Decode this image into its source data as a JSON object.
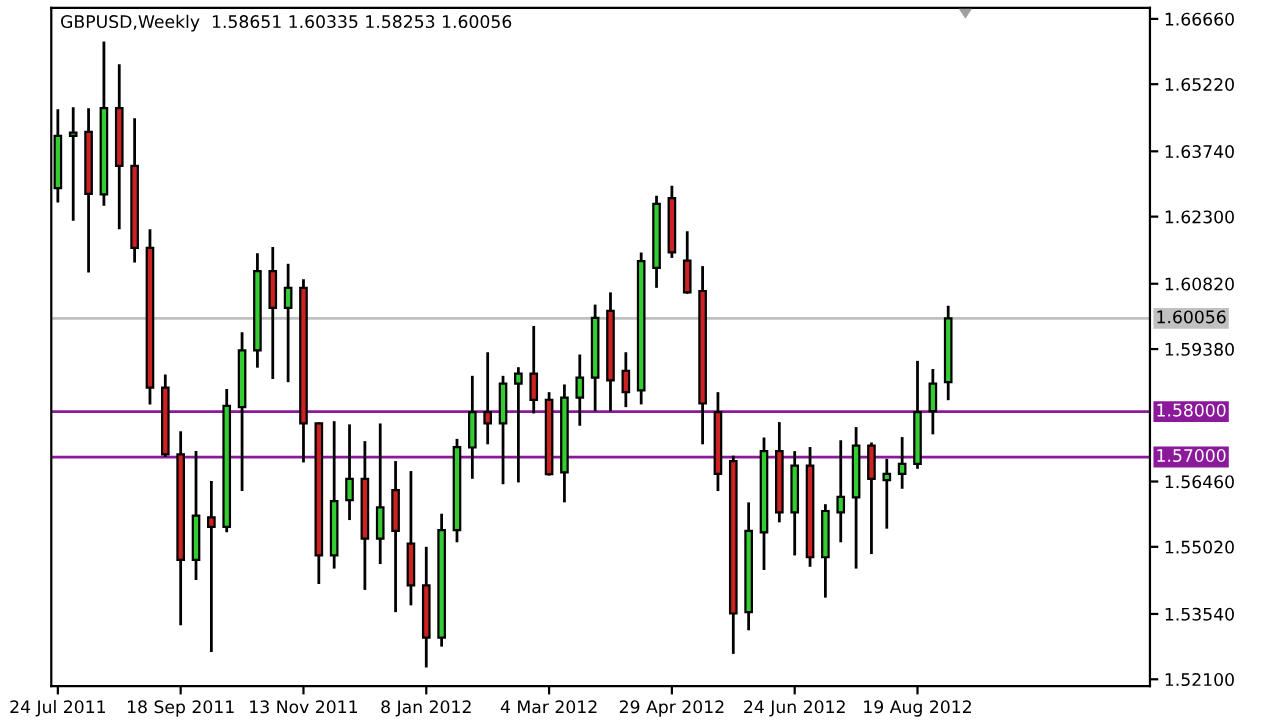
{
  "chart_data": {
    "type": "candlestick",
    "title": "GBPUSD,Weekly  1.58651 1.60335 1.58253 1.60056",
    "x": [
      "2011-07-24",
      "2011-07-31",
      "2011-08-07",
      "2011-08-14",
      "2011-08-21",
      "2011-08-28",
      "2011-09-04",
      "2011-09-11",
      "2011-09-18",
      "2011-09-25",
      "2011-10-02",
      "2011-10-09",
      "2011-10-16",
      "2011-10-23",
      "2011-10-30",
      "2011-11-06",
      "2011-11-13",
      "2011-11-20",
      "2011-11-27",
      "2011-12-04",
      "2011-12-11",
      "2011-12-18",
      "2011-12-25",
      "2012-01-01",
      "2012-01-08",
      "2012-01-15",
      "2012-01-22",
      "2012-01-29",
      "2012-02-05",
      "2012-02-12",
      "2012-02-19",
      "2012-02-26",
      "2012-03-04",
      "2012-03-11",
      "2012-03-18",
      "2012-03-25",
      "2012-04-01",
      "2012-04-08",
      "2012-04-15",
      "2012-04-22",
      "2012-04-29",
      "2012-05-06",
      "2012-05-13",
      "2012-05-20",
      "2012-05-27",
      "2012-06-03",
      "2012-06-10",
      "2012-06-17",
      "2012-06-24",
      "2012-07-01",
      "2012-07-08",
      "2012-07-15",
      "2012-07-22",
      "2012-07-29",
      "2012-08-05",
      "2012-08-12",
      "2012-08-19",
      "2012-08-26",
      "2012-09-02"
    ],
    "ohlc": [
      [
        1.6293,
        1.6467,
        1.6261,
        1.6408
      ],
      [
        1.6408,
        1.6471,
        1.6221,
        1.6415
      ],
      [
        1.6417,
        1.6469,
        1.6107,
        1.628
      ],
      [
        1.6279,
        1.6616,
        1.6254,
        1.6469
      ],
      [
        1.6469,
        1.6566,
        1.6202,
        1.6342
      ],
      [
        1.6342,
        1.6447,
        1.6129,
        1.6161
      ],
      [
        1.6161,
        1.6202,
        1.5816,
        1.5853
      ],
      [
        1.5853,
        1.5882,
        1.57,
        1.5706
      ],
      [
        1.5706,
        1.5757,
        1.5329,
        1.5473
      ],
      [
        1.5473,
        1.5713,
        1.5429,
        1.5571
      ],
      [
        1.5567,
        1.5647,
        1.527,
        1.5546
      ],
      [
        1.5546,
        1.585,
        1.5534,
        1.5813
      ],
      [
        1.581,
        1.5975,
        1.5625,
        1.5935
      ],
      [
        1.5935,
        1.6149,
        1.5897,
        1.611
      ],
      [
        1.611,
        1.6163,
        1.5872,
        1.6029
      ],
      [
        1.6029,
        1.6126,
        1.5865,
        1.6073
      ],
      [
        1.6073,
        1.6092,
        1.5688,
        1.5774
      ],
      [
        1.5774,
        1.5776,
        1.542,
        1.5483
      ],
      [
        1.5483,
        1.5779,
        1.5454,
        1.5603
      ],
      [
        1.5605,
        1.5772,
        1.5561,
        1.5652
      ],
      [
        1.5652,
        1.5735,
        1.5407,
        1.552
      ],
      [
        1.552,
        1.5774,
        1.5464,
        1.5589
      ],
      [
        1.5627,
        1.5691,
        1.5358,
        1.5537
      ],
      [
        1.5509,
        1.5669,
        1.5373,
        1.5417
      ],
      [
        1.5417,
        1.5502,
        1.5236,
        1.5302
      ],
      [
        1.5302,
        1.5575,
        1.5282,
        1.5539
      ],
      [
        1.5539,
        1.574,
        1.5512,
        1.5722
      ],
      [
        1.5721,
        1.5879,
        1.5652,
        1.5799
      ],
      [
        1.5799,
        1.5931,
        1.5728,
        1.5774
      ],
      [
        1.5774,
        1.5879,
        1.564,
        1.5862
      ],
      [
        1.5862,
        1.5898,
        1.5644,
        1.5884
      ],
      [
        1.5884,
        1.5989,
        1.5796,
        1.5826
      ],
      [
        1.5826,
        1.5843,
        1.5659,
        1.5662
      ],
      [
        1.5666,
        1.586,
        1.56,
        1.5831
      ],
      [
        1.5831,
        1.5926,
        1.5769,
        1.5875
      ],
      [
        1.5875,
        1.6036,
        1.5801,
        1.6007
      ],
      [
        1.6022,
        1.6063,
        1.5801,
        1.5869
      ],
      [
        1.589,
        1.5931,
        1.581,
        1.5843
      ],
      [
        1.5847,
        1.6151,
        1.5816,
        1.6132
      ],
      [
        1.6117,
        1.6276,
        1.6073,
        1.6258
      ],
      [
        1.6271,
        1.6298,
        1.6139,
        1.6151
      ],
      [
        1.6133,
        1.6198,
        1.606,
        1.6063
      ],
      [
        1.6066,
        1.6121,
        1.5728,
        1.5818
      ],
      [
        1.5799,
        1.5843,
        1.5625,
        1.5663
      ],
      [
        1.5691,
        1.5703,
        1.5266,
        1.5355
      ],
      [
        1.5358,
        1.56,
        1.5318,
        1.5537
      ],
      [
        1.5534,
        1.5743,
        1.5451,
        1.5713
      ],
      [
        1.5713,
        1.5777,
        1.5556,
        1.5578
      ],
      [
        1.5578,
        1.5713,
        1.5483,
        1.5681
      ],
      [
        1.5681,
        1.5722,
        1.5458,
        1.5479
      ],
      [
        1.5479,
        1.5596,
        1.539,
        1.5581
      ],
      [
        1.5578,
        1.5737,
        1.5512,
        1.5612
      ],
      [
        1.5611,
        1.5766,
        1.5454,
        1.5725
      ],
      [
        1.5725,
        1.5732,
        1.5486,
        1.5652
      ],
      [
        1.5649,
        1.5696,
        1.5542,
        1.5663
      ],
      [
        1.5663,
        1.5744,
        1.563,
        1.5685
      ],
      [
        1.5685,
        1.5912,
        1.5674,
        1.5799
      ],
      [
        1.5801,
        1.5894,
        1.575,
        1.5862
      ],
      [
        1.58651,
        1.60335,
        1.58253,
        1.60056
      ]
    ],
    "colors": [
      "#33cc33",
      "#33cc33",
      "#cc2222",
      "#33cc33",
      "#cc2222",
      "#cc2222",
      "#cc2222",
      "#cc2222",
      "#cc2222",
      "#33cc33",
      "#cc2222",
      "#33cc33",
      "#33cc33",
      "#33cc33",
      "#cc2222",
      "#33cc33",
      "#cc2222",
      "#cc2222",
      "#33cc33",
      "#33cc33",
      "#cc2222",
      "#33cc33",
      "#cc2222",
      "#cc2222",
      "#cc2222",
      "#33cc33",
      "#33cc33",
      "#33cc33",
      "#cc2222",
      "#33cc33",
      "#33cc33",
      "#cc2222",
      "#cc2222",
      "#33cc33",
      "#33cc33",
      "#33cc33",
      "#cc2222",
      "#cc2222",
      "#33cc33",
      "#33cc33",
      "#cc2222",
      "#cc2222",
      "#cc2222",
      "#cc2222",
      "#cc2222",
      "#33cc33",
      "#33cc33",
      "#cc2222",
      "#33cc33",
      "#cc2222",
      "#33cc33",
      "#33cc33",
      "#33cc33",
      "#cc2222",
      "#33cc33",
      "#33cc33",
      "#33cc33",
      "#33cc33",
      "#33cc33"
    ],
    "xlim": [
      "2011-07-21",
      "2012-12-03"
    ],
    "xticks": [
      {
        "value": "2011-07-24",
        "label": "24 Jul 2011"
      },
      {
        "value": "2011-09-18",
        "label": "18 Sep 2011"
      },
      {
        "value": "2011-11-13",
        "label": "13 Nov 2011"
      },
      {
        "value": "2012-01-08",
        "label": "8 Jan 2012"
      },
      {
        "value": "2012-03-04",
        "label": "4 Mar 2012"
      },
      {
        "value": "2012-04-29",
        "label": "29 Apr 2012"
      },
      {
        "value": "2012-06-24",
        "label": "24 Jun 2012"
      },
      {
        "value": "2012-08-19",
        "label": "19 Aug 2012"
      }
    ],
    "ylim": [
      1.5195,
      1.669
    ],
    "yticks": [
      {
        "value": 1.6666,
        "label": "1.66660"
      },
      {
        "value": 1.6522,
        "label": "1.65220"
      },
      {
        "value": 1.6374,
        "label": "1.63740"
      },
      {
        "value": 1.623,
        "label": "1.62300"
      },
      {
        "value": 1.6082,
        "label": "1.60820"
      },
      {
        "value": 1.5938,
        "label": "1.59380"
      },
      {
        "value": 1.5646,
        "label": "1.56460"
      },
      {
        "value": 1.5502,
        "label": "1.55020"
      },
      {
        "value": 1.5354,
        "label": "1.53540"
      },
      {
        "value": 1.521,
        "label": "1.52100"
      }
    ],
    "ref_lines": [
      {
        "axis": "y",
        "value": 1.60056,
        "label": "1.60056",
        "color": "#c0c0c0"
      },
      {
        "axis": "y",
        "value": 1.58,
        "label": "1.58000",
        "color": "#8b1a9b"
      },
      {
        "axis": "y",
        "value": 1.57,
        "label": "1.57000",
        "color": "#8b1a9b"
      }
    ]
  }
}
